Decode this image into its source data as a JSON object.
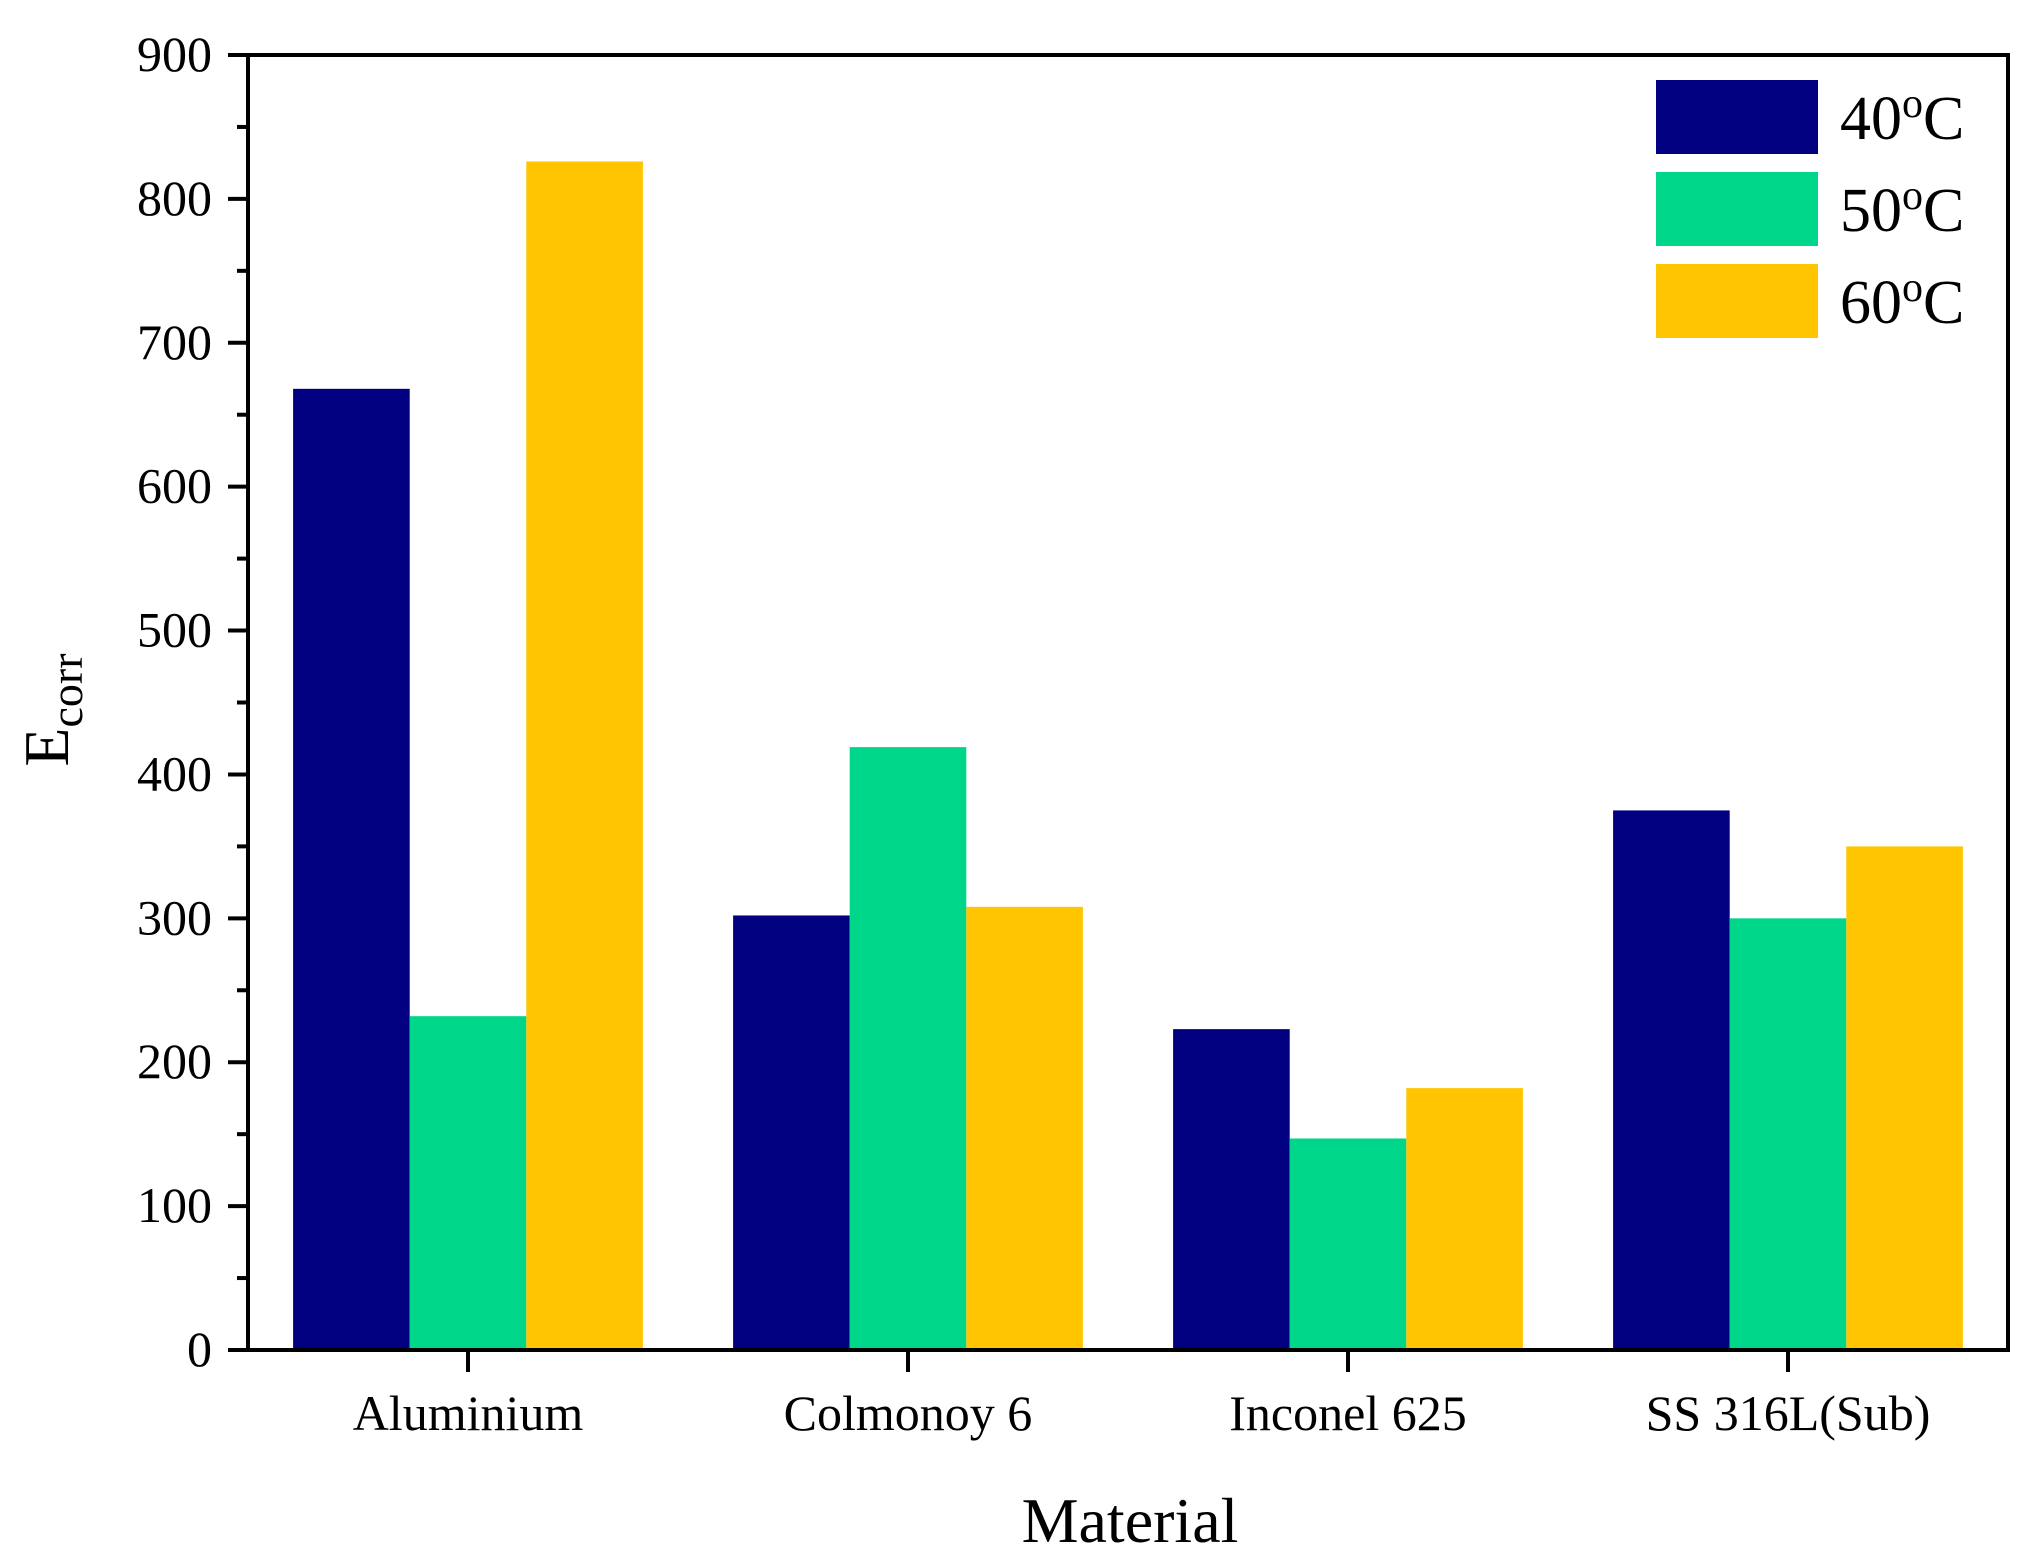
{
  "chart_data": {
    "type": "bar",
    "title": "",
    "xlabel": "Material",
    "ylabel_main": "E",
    "ylabel_sub": "corr",
    "ylim": [
      0,
      900
    ],
    "yticks": [
      0,
      100,
      200,
      300,
      400,
      500,
      600,
      700,
      800,
      900
    ],
    "yticks_text": [
      "0",
      "100",
      "200",
      "300",
      "400",
      "500",
      "600",
      "700",
      "800",
      "900"
    ],
    "categories": [
      "Aluminium",
      "Colmonoy 6",
      "Inconel 625",
      "SS 316L(Sub)"
    ],
    "series": [
      {
        "name": "40",
        "unit": "C",
        "sup": "o",
        "color": "#000080",
        "values": [
          668,
          302,
          223,
          375
        ]
      },
      {
        "name": "50",
        "unit": "C",
        "sup": "o",
        "color": "#00d68a",
        "values": [
          232,
          419,
          147,
          300
        ]
      },
      {
        "name": "60",
        "unit": "C",
        "sup": "o",
        "color": "#ffc500",
        "values": [
          826,
          308,
          182,
          350
        ]
      }
    ],
    "legend_position": "top-right",
    "grid": false
  }
}
